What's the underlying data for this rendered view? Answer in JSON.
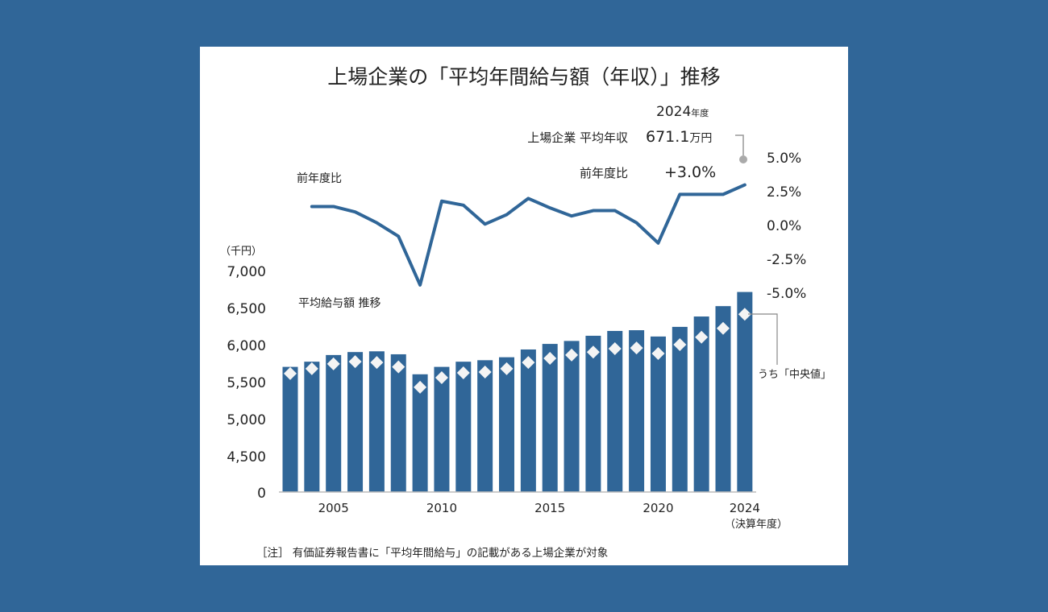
{
  "chart_data": [
    {
      "type": "line",
      "title": "上場企業の「平均年間給与額（年収）」推移",
      "series_label": "前年度比",
      "ylabel": "前年度比 (%)",
      "axis_side": "right",
      "ylim": [
        -5.0,
        5.0
      ],
      "yticks": [
        "5.0%",
        "2.5%",
        "0.0%",
        "-2.5%",
        "-5.0%"
      ],
      "ytick_values": [
        5.0,
        2.5,
        0.0,
        -2.5,
        -5.0
      ],
      "x": [
        2004,
        2005,
        2006,
        2007,
        2008,
        2009,
        2010,
        2011,
        2012,
        2013,
        2014,
        2015,
        2016,
        2017,
        2018,
        2019,
        2020,
        2021,
        2022,
        2023,
        2024
      ],
      "values": [
        1.4,
        1.4,
        1.0,
        0.2,
        -0.8,
        -4.4,
        1.8,
        1.5,
        0.1,
        0.8,
        2.0,
        1.3,
        0.7,
        1.1,
        1.1,
        0.2,
        -1.3,
        2.3,
        2.3,
        2.3,
        3.0
      ],
      "color": "#306698"
    },
    {
      "type": "bar",
      "series_label": "平均給与額 推移",
      "unit_label": "（千円）",
      "xlabel": "（決算年度）",
      "ylim": [
        4500,
        7000
      ],
      "axis_break": true,
      "yticks": [
        "7,000",
        "6,500",
        "6,000",
        "5,500",
        "5,000",
        "4,500",
        "0"
      ],
      "ytick_values": [
        7000,
        6500,
        6000,
        5500,
        5000,
        4500,
        0
      ],
      "xticks": [
        "2005",
        "2010",
        "2015",
        "2020",
        "2024"
      ],
      "xtick_values": [
        2005,
        2010,
        2015,
        2020,
        2024
      ],
      "categories": [
        2003,
        2004,
        2005,
        2006,
        2007,
        2008,
        2009,
        2010,
        2011,
        2012,
        2013,
        2014,
        2015,
        2016,
        2017,
        2018,
        2019,
        2020,
        2021,
        2022,
        2023,
        2024
      ],
      "series": [
        {
          "name": "平均給与額",
          "color": "#306698",
          "values": [
            5700,
            5770,
            5860,
            5900,
            5910,
            5870,
            5600,
            5700,
            5770,
            5790,
            5830,
            5935,
            6010,
            6050,
            6120,
            6185,
            6195,
            6110,
            6240,
            6380,
            6520,
            6711
          ]
        },
        {
          "name": "うち「中央値」",
          "marker": "diamond",
          "color": "#ffffff",
          "values": [
            5610,
            5675,
            5740,
            5770,
            5760,
            5700,
            5425,
            5555,
            5620,
            5630,
            5675,
            5760,
            5815,
            5860,
            5900,
            5945,
            5955,
            5880,
            6000,
            6100,
            6220,
            6410
          ]
        }
      ]
    }
  ],
  "annotations": {
    "year_label": "2024",
    "year_suffix": "年度",
    "avg_label": "上場企業 平均年収",
    "avg_value": "671.1",
    "avg_unit": "万円",
    "yoy_label": "前年度比",
    "yoy_value": "+3.0%",
    "median_label": "うち「中央値」"
  },
  "footnote": "［注］ 有価証券報告書に「平均年間給与」の記載がある上場企業が対象"
}
